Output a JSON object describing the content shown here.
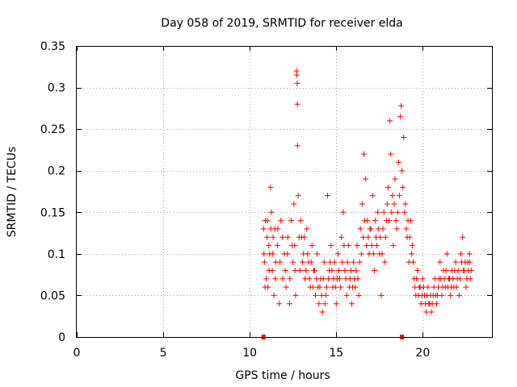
{
  "chart_data": {
    "type": "scatter",
    "title": "Day 058 of 2019, SRMTID for receiver elda",
    "xlabel": "GPS time / hours",
    "ylabel": "SRMTID / TECUs",
    "xlim": [
      0,
      24
    ],
    "ylim": [
      0,
      0.35
    ],
    "x_ticks": [
      0,
      5,
      10,
      15,
      20
    ],
    "x_tick_labels": [
      "0",
      "5",
      "10",
      "15",
      "20"
    ],
    "y_ticks": [
      0,
      0.05,
      0.1,
      0.15,
      0.2,
      0.25,
      0.3,
      0.35
    ],
    "y_tick_labels": [
      "0",
      "0.05",
      "0.1",
      "0.15",
      "0.2",
      "0.25",
      "0.3",
      "0.35"
    ],
    "grid": true,
    "marker": "+",
    "color": "#ff0000",
    "series": [
      {
        "name": "SRMTID",
        "points": [
          [
            10.8,
            0.13
          ],
          [
            10.85,
            0.09
          ],
          [
            10.9,
            0.14
          ],
          [
            10.95,
            0.07
          ],
          [
            11.0,
            0.12
          ],
          [
            11.05,
            0.06
          ],
          [
            11.1,
            0.11
          ],
          [
            11.15,
            0.1
          ],
          [
            11.2,
            0.18
          ],
          [
            11.25,
            0.15
          ],
          [
            11.3,
            0.08
          ],
          [
            11.35,
            0.12
          ],
          [
            11.4,
            0.05
          ],
          [
            11.45,
            0.13
          ],
          [
            11.5,
            0.09
          ],
          [
            11.6,
            0.11
          ],
          [
            11.7,
            0.04
          ],
          [
            11.8,
            0.14
          ],
          [
            11.9,
            0.07
          ],
          [
            12.0,
            0.1
          ],
          [
            12.1,
            0.06
          ],
          [
            12.2,
            0.12
          ],
          [
            12.3,
            0.04
          ],
          [
            12.4,
            0.14
          ],
          [
            12.5,
            0.09
          ],
          [
            12.55,
            0.16
          ],
          [
            12.6,
            0.11
          ],
          [
            12.65,
            0.05
          ],
          [
            12.7,
            0.32
          ],
          [
            12.72,
            0.315
          ],
          [
            12.74,
            0.305
          ],
          [
            12.75,
            0.28
          ],
          [
            12.76,
            0.23
          ],
          [
            12.8,
            0.17
          ],
          [
            12.9,
            0.08
          ],
          [
            13.0,
            0.12
          ],
          [
            13.1,
            0.1
          ],
          [
            13.2,
            0.07
          ],
          [
            13.3,
            0.13
          ],
          [
            13.4,
            0.09
          ],
          [
            13.5,
            0.06
          ],
          [
            13.6,
            0.11
          ],
          [
            13.7,
            0.08
          ],
          [
            13.8,
            0.05
          ],
          [
            13.9,
            0.1
          ],
          [
            14.0,
            0.04
          ],
          [
            14.1,
            0.07
          ],
          [
            14.2,
            0.03
          ],
          [
            14.3,
            0.09
          ],
          [
            14.4,
            0.05
          ],
          [
            14.5,
            0.17
          ],
          [
            14.6,
            0.08
          ],
          [
            14.7,
            0.11
          ],
          [
            14.8,
            0.06
          ],
          [
            14.9,
            0.09
          ],
          [
            15.0,
            0.04
          ],
          [
            15.1,
            0.1
          ],
          [
            15.2,
            0.07
          ],
          [
            15.3,
            0.12
          ],
          [
            15.4,
            0.15
          ],
          [
            15.5,
            0.08
          ],
          [
            15.6,
            0.05
          ],
          [
            15.7,
            0.11
          ],
          [
            15.8,
            0.07
          ],
          [
            15.9,
            0.04
          ],
          [
            16.0,
            0.09
          ],
          [
            16.1,
            0.06
          ],
          [
            16.2,
            0.11
          ],
          [
            16.3,
            0.05
          ],
          [
            16.4,
            0.13
          ],
          [
            16.5,
            0.16
          ],
          [
            16.6,
            0.22
          ],
          [
            16.7,
            0.19
          ],
          [
            16.8,
            0.14
          ],
          [
            16.9,
            0.1
          ],
          [
            17.0,
            0.13
          ],
          [
            17.1,
            0.17
          ],
          [
            17.2,
            0.08
          ],
          [
            17.3,
            0.12
          ],
          [
            17.4,
            0.15
          ],
          [
            17.5,
            0.1
          ],
          [
            17.6,
            0.05
          ],
          [
            17.7,
            0.13
          ],
          [
            17.8,
            0.09
          ],
          [
            17.9,
            0.14
          ],
          [
            18.0,
            0.18
          ],
          [
            18.1,
            0.26
          ],
          [
            18.15,
            0.22
          ],
          [
            18.2,
            0.15
          ],
          [
            18.3,
            0.11
          ],
          [
            18.4,
            0.19
          ],
          [
            18.5,
            0.13
          ],
          [
            18.6,
            0.21
          ],
          [
            18.7,
            0.265
          ],
          [
            18.75,
            0.278
          ],
          [
            18.8,
            0.2
          ],
          [
            18.9,
            0.24
          ],
          [
            19.0,
            0.16
          ],
          [
            19.1,
            0.12
          ],
          [
            19.2,
            0.09
          ],
          [
            19.3,
            0.14
          ],
          [
            19.4,
            0.11
          ],
          [
            19.5,
            0.07
          ],
          [
            19.6,
            0.05
          ],
          [
            19.7,
            0.08
          ],
          [
            19.8,
            0.06
          ],
          [
            19.9,
            0.04
          ],
          [
            20.0,
            0.07
          ],
          [
            20.1,
            0.05
          ],
          [
            20.2,
            0.03
          ],
          [
            20.3,
            0.06
          ],
          [
            20.4,
            0.04
          ],
          [
            20.5,
            0.03
          ],
          [
            20.6,
            0.05
          ],
          [
            20.7,
            0.07
          ],
          [
            20.8,
            0.04
          ],
          [
            20.9,
            0.06
          ],
          [
            21.0,
            0.09
          ],
          [
            21.1,
            0.05
          ],
          [
            21.2,
            0.08
          ],
          [
            21.3,
            0.06
          ],
          [
            21.4,
            0.1
          ],
          [
            21.5,
            0.07
          ],
          [
            21.6,
            0.05
          ],
          [
            21.7,
            0.08
          ],
          [
            21.8,
            0.06
          ],
          [
            21.9,
            0.09
          ],
          [
            22.0,
            0.07
          ],
          [
            22.1,
            0.05
          ],
          [
            22.2,
            0.1
          ],
          [
            22.3,
            0.12
          ],
          [
            22.4,
            0.08
          ],
          [
            22.5,
            0.06
          ],
          [
            22.6,
            0.09
          ],
          [
            22.7,
            0.1
          ],
          [
            22.75,
            0.07
          ],
          [
            22.8,
            0.08
          ],
          [
            10.82,
            0.1
          ],
          [
            10.88,
            0.06
          ],
          [
            11.02,
            0.14
          ],
          [
            11.12,
            0.08
          ],
          [
            11.22,
            0.13
          ],
          [
            11.33,
            0.1
          ],
          [
            11.48,
            0.07
          ],
          [
            11.62,
            0.13
          ],
          [
            11.75,
            0.09
          ],
          [
            11.88,
            0.12
          ],
          [
            12.05,
            0.08
          ],
          [
            12.18,
            0.1
          ],
          [
            12.32,
            0.07
          ],
          [
            12.45,
            0.11
          ],
          [
            12.62,
            0.08
          ],
          [
            12.85,
            0.12
          ],
          [
            12.95,
            0.14
          ],
          [
            13.05,
            0.09
          ],
          [
            13.15,
            0.12
          ],
          [
            13.25,
            0.08
          ],
          [
            13.35,
            0.1
          ],
          [
            13.45,
            0.07
          ],
          [
            13.55,
            0.09
          ],
          [
            13.65,
            0.06
          ],
          [
            13.75,
            0.08
          ],
          [
            13.85,
            0.07
          ],
          [
            13.95,
            0.06
          ],
          [
            14.05,
            0.06
          ],
          [
            14.15,
            0.05
          ],
          [
            14.25,
            0.07
          ],
          [
            14.35,
            0.04
          ],
          [
            14.45,
            0.06
          ],
          [
            14.55,
            0.07
          ],
          [
            14.65,
            0.09
          ],
          [
            14.75,
            0.08
          ],
          [
            14.85,
            0.07
          ],
          [
            14.95,
            0.06
          ],
          [
            15.05,
            0.07
          ],
          [
            15.15,
            0.08
          ],
          [
            15.25,
            0.06
          ],
          [
            15.35,
            0.09
          ],
          [
            15.45,
            0.11
          ],
          [
            15.55,
            0.07
          ],
          [
            15.65,
            0.09
          ],
          [
            15.75,
            0.06
          ],
          [
            15.85,
            0.08
          ],
          [
            15.95,
            0.06
          ],
          [
            16.05,
            0.07
          ],
          [
            16.15,
            0.08
          ],
          [
            16.25,
            0.07
          ],
          [
            16.35,
            0.09
          ],
          [
            16.45,
            0.1
          ],
          [
            16.55,
            0.12
          ],
          [
            16.65,
            0.14
          ],
          [
            16.75,
            0.11
          ],
          [
            16.85,
            0.12
          ],
          [
            16.95,
            0.13
          ],
          [
            17.05,
            0.11
          ],
          [
            17.15,
            0.1
          ],
          [
            17.25,
            0.14
          ],
          [
            17.35,
            0.11
          ],
          [
            17.45,
            0.13
          ],
          [
            17.55,
            0.12
          ],
          [
            17.65,
            0.1
          ],
          [
            17.75,
            0.15
          ],
          [
            17.85,
            0.12
          ],
          [
            17.95,
            0.16
          ],
          [
            18.05,
            0.14
          ],
          [
            18.25,
            0.17
          ],
          [
            18.35,
            0.16
          ],
          [
            18.45,
            0.14
          ],
          [
            18.55,
            0.15
          ],
          [
            18.65,
            0.17
          ],
          [
            18.85,
            0.18
          ],
          [
            18.95,
            0.15
          ],
          [
            19.05,
            0.13
          ],
          [
            19.15,
            0.14
          ],
          [
            19.25,
            0.12
          ],
          [
            19.35,
            0.1
          ],
          [
            19.45,
            0.09
          ],
          [
            19.55,
            0.06
          ],
          [
            19.65,
            0.07
          ],
          [
            19.75,
            0.05
          ],
          [
            19.85,
            0.06
          ],
          [
            19.95,
            0.05
          ],
          [
            20.05,
            0.06
          ],
          [
            20.15,
            0.04
          ],
          [
            20.25,
            0.05
          ],
          [
            20.35,
            0.04
          ],
          [
            20.45,
            0.05
          ],
          [
            20.55,
            0.04
          ],
          [
            20.65,
            0.06
          ],
          [
            20.75,
            0.05
          ],
          [
            20.85,
            0.05
          ],
          [
            20.95,
            0.07
          ],
          [
            21.05,
            0.07
          ],
          [
            21.15,
            0.06
          ],
          [
            21.25,
            0.07
          ],
          [
            21.35,
            0.08
          ],
          [
            21.45,
            0.06
          ],
          [
            21.55,
            0.07
          ],
          [
            21.65,
            0.06
          ],
          [
            21.75,
            0.07
          ],
          [
            21.85,
            0.08
          ],
          [
            21.95,
            0.06
          ],
          [
            22.05,
            0.08
          ],
          [
            22.15,
            0.07
          ],
          [
            22.25,
            0.09
          ],
          [
            22.35,
            0.08
          ],
          [
            22.45,
            0.09
          ],
          [
            22.55,
            0.07
          ],
          [
            22.65,
            0.08
          ],
          [
            22.72,
            0.09
          ]
        ]
      }
    ],
    "axis_markers": [
      10.8,
      18.8
    ]
  }
}
